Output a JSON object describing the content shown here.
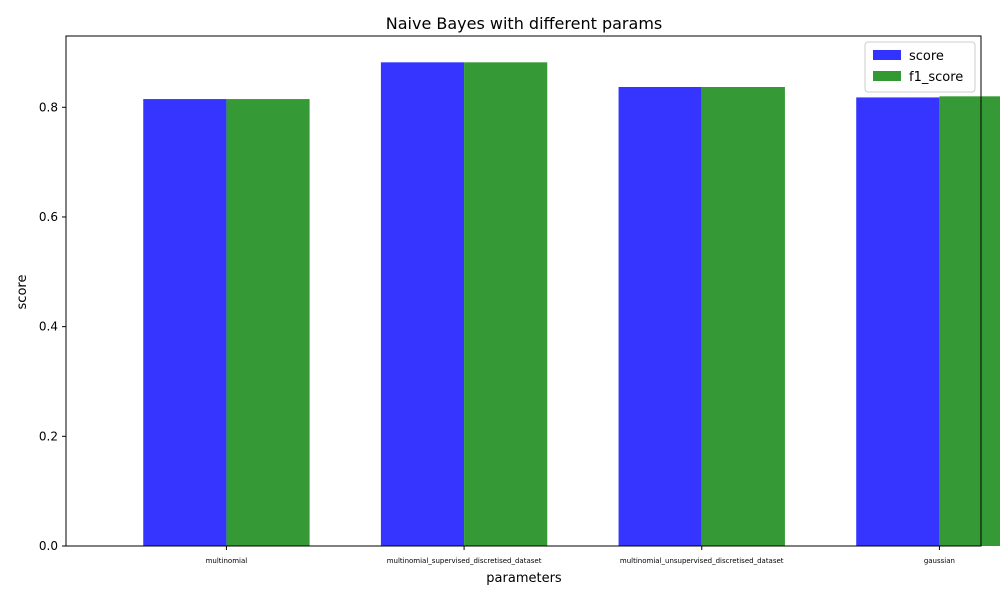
{
  "chart_data": {
    "type": "bar",
    "title": "Naive Bayes with different params",
    "xlabel": "parameters",
    "ylabel": "score",
    "categories": [
      "multinomial",
      "multinomial_supervised_discretised_dataset",
      "multinomial_unsupervised_discretised_dataset",
      "gaussian"
    ],
    "series": [
      {
        "name": "score",
        "color": "#3333ff",
        "values": [
          0.815,
          0.882,
          0.837,
          0.818
        ]
      },
      {
        "name": "f1_score",
        "color": "#339933",
        "values": [
          0.815,
          0.882,
          0.837,
          0.82
        ]
      }
    ],
    "ylim": [
      0,
      0.93
    ],
    "yticks": [
      0.0,
      0.2,
      0.4,
      0.6,
      0.8
    ],
    "ytick_labels": [
      "0.0",
      "0.2",
      "0.4",
      "0.6",
      "0.8"
    ],
    "grid": false,
    "legend_position": "top-right"
  }
}
